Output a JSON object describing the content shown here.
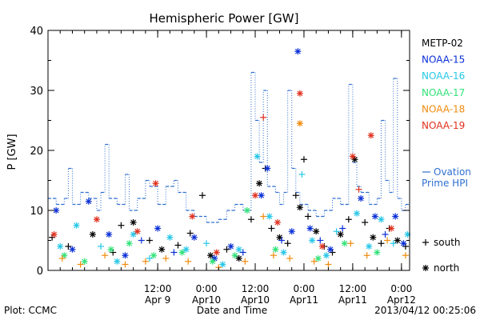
{
  "chart_data": {
    "type": "scatter",
    "title": "Hemispheric Power [GW]",
    "xlabel": "Date and Time",
    "ylabel": "P [GW]",
    "ylim": [
      0,
      40
    ],
    "yticks": [
      0,
      10,
      20,
      30,
      40
    ],
    "xlim": [
      "2013-04-08T09:00",
      "2013-04-12T02:00"
    ],
    "xticks": [
      {
        "t": "2013-04-09T12:00",
        "line1": "12:00",
        "line2": "Apr 9"
      },
      {
        "t": "2013-04-10T00:00",
        "line1": "0:00",
        "line2": "Apr10"
      },
      {
        "t": "2013-04-10T12:00",
        "line1": "12:00",
        "line2": "Apr10"
      },
      {
        "t": "2013-04-11T00:00",
        "line1": "0:00",
        "line2": "Apr11"
      },
      {
        "t": "2013-04-11T12:00",
        "line1": "12:00",
        "line2": "Apr11"
      },
      {
        "t": "2013-04-12T00:00",
        "line1": "0:00",
        "line2": "Apr12"
      }
    ],
    "grid": false,
    "legend_position": "right",
    "series": [
      {
        "name": "METP-02",
        "color": "#000000",
        "points": [
          [
            "2013-04-08T10:00",
            5.5,
            "+"
          ],
          [
            "2013-04-08T14:00",
            4.0,
            "+"
          ],
          [
            "2013-04-08T20:00",
            6.0,
            "*"
          ],
          [
            "2013-04-09T01:00",
            3.0,
            "+"
          ],
          [
            "2013-04-09T03:00",
            7.5,
            "+"
          ],
          [
            "2013-04-09T06:00",
            8.0,
            "*"
          ],
          [
            "2013-04-09T10:00",
            5.0,
            "+"
          ],
          [
            "2013-04-09T13:00",
            3.5,
            "*"
          ],
          [
            "2013-04-09T17:00",
            4.2,
            "+"
          ],
          [
            "2013-04-09T20:00",
            6.2,
            "+"
          ],
          [
            "2013-04-09T23:00",
            12.5,
            "+"
          ],
          [
            "2013-04-10T01:00",
            2.5,
            "*"
          ],
          [
            "2013-04-10T05:00",
            3.5,
            "+"
          ],
          [
            "2013-04-10T08:00",
            2.0,
            "*"
          ],
          [
            "2013-04-10T11:00",
            8.5,
            "+"
          ],
          [
            "2013-04-10T13:00",
            14.5,
            "*"
          ],
          [
            "2013-04-10T14:30",
            17.0,
            "+"
          ],
          [
            "2013-04-10T16:00",
            7.0,
            "+"
          ],
          [
            "2013-04-10T18:00",
            5.5,
            "*"
          ],
          [
            "2013-04-10T20:00",
            4.5,
            "+"
          ],
          [
            "2013-04-10T22:00",
            12.5,
            "+"
          ],
          [
            "2013-04-10T23:00",
            10.5,
            "*"
          ],
          [
            "2013-04-11T00:00",
            18.5,
            "+"
          ],
          [
            "2013-04-11T01:00",
            9.0,
            "+"
          ],
          [
            "2013-04-11T03:00",
            6.5,
            "*"
          ],
          [
            "2013-04-11T05:00",
            4.0,
            "+"
          ],
          [
            "2013-04-11T07:00",
            3.0,
            "+"
          ],
          [
            "2013-04-11T09:00",
            6.0,
            "*"
          ],
          [
            "2013-04-11T11:00",
            8.5,
            "+"
          ],
          [
            "2013-04-11T12:30",
            18.5,
            "*"
          ],
          [
            "2013-04-11T15:00",
            8.0,
            "+"
          ],
          [
            "2013-04-11T17:00",
            5.5,
            "*"
          ],
          [
            "2013-04-11T19:00",
            4.5,
            "+"
          ],
          [
            "2013-04-11T21:00",
            7.0,
            "+"
          ],
          [
            "2013-04-11T23:00",
            5.0,
            "*"
          ],
          [
            "2013-04-12T01:00",
            4.0,
            "+"
          ]
        ]
      },
      {
        "name": "NOAA-15",
        "color": "#0a2fd6",
        "points": [
          [
            "2013-04-08T11:00",
            10.0,
            "*"
          ],
          [
            "2013-04-08T15:00",
            3.5,
            "*"
          ],
          [
            "2013-04-08T19:00",
            11.5,
            "*"
          ],
          [
            "2013-04-09T00:00",
            6.0,
            "*"
          ],
          [
            "2013-04-09T04:00",
            2.5,
            "*"
          ],
          [
            "2013-04-09T08:00",
            5.0,
            "+"
          ],
          [
            "2013-04-09T12:00",
            7.0,
            "*"
          ],
          [
            "2013-04-09T16:00",
            3.0,
            "+"
          ],
          [
            "2013-04-09T21:00",
            5.5,
            "*"
          ],
          [
            "2013-04-10T02:00",
            2.0,
            "*"
          ],
          [
            "2013-04-10T06:00",
            4.0,
            "*"
          ],
          [
            "2013-04-10T09:00",
            3.0,
            "+"
          ],
          [
            "2013-04-10T13:30",
            12.5,
            "*"
          ],
          [
            "2013-04-10T15:00",
            17.0,
            "*"
          ],
          [
            "2013-04-10T18:30",
            5.0,
            "+"
          ],
          [
            "2013-04-10T21:00",
            6.5,
            "*"
          ],
          [
            "2013-04-10T22:30",
            36.5,
            "*"
          ],
          [
            "2013-04-11T01:30",
            7.0,
            "*"
          ],
          [
            "2013-04-11T04:00",
            5.0,
            "+"
          ],
          [
            "2013-04-11T06:30",
            3.5,
            "*"
          ],
          [
            "2013-04-11T09:30",
            7.0,
            "+"
          ],
          [
            "2013-04-11T14:00",
            12.0,
            "*"
          ],
          [
            "2013-04-11T17:30",
            9.0,
            "*"
          ],
          [
            "2013-04-11T20:00",
            6.0,
            "+"
          ],
          [
            "2013-04-11T22:30",
            9.0,
            "*"
          ],
          [
            "2013-04-12T00:30",
            4.5,
            "*"
          ]
        ]
      },
      {
        "name": "NOAA-16",
        "color": "#27c7e8",
        "points": [
          [
            "2013-04-08T12:00",
            4.0,
            "*"
          ],
          [
            "2013-04-08T16:00",
            7.5,
            "*"
          ],
          [
            "2013-04-08T22:00",
            4.0,
            "+"
          ],
          [
            "2013-04-09T02:00",
            1.5,
            "*"
          ],
          [
            "2013-04-09T06:00",
            6.0,
            "*"
          ],
          [
            "2013-04-09T10:00",
            2.0,
            "+"
          ],
          [
            "2013-04-09T15:00",
            5.5,
            "*"
          ],
          [
            "2013-04-09T19:00",
            3.5,
            "*"
          ],
          [
            "2013-04-10T00:00",
            4.5,
            "+"
          ],
          [
            "2013-04-10T04:00",
            1.0,
            "*"
          ],
          [
            "2013-04-10T08:00",
            3.5,
            "*"
          ],
          [
            "2013-04-10T12:30",
            19.0,
            "*"
          ],
          [
            "2013-04-10T15:30",
            9.0,
            "*"
          ],
          [
            "2013-04-10T19:00",
            3.0,
            "*"
          ],
          [
            "2013-04-10T23:30",
            16.0,
            "+"
          ],
          [
            "2013-04-11T02:00",
            5.0,
            "*"
          ],
          [
            "2013-04-11T05:30",
            2.5,
            "*"
          ],
          [
            "2013-04-11T08:00",
            6.5,
            "+"
          ],
          [
            "2013-04-11T13:00",
            9.5,
            "*"
          ],
          [
            "2013-04-11T16:00",
            4.0,
            "*"
          ],
          [
            "2013-04-11T19:00",
            8.5,
            "*"
          ],
          [
            "2013-04-11T22:00",
            4.5,
            "+"
          ],
          [
            "2013-04-12T01:30",
            6.0,
            "*"
          ]
        ]
      },
      {
        "name": "NOAA-17",
        "color": "#33e27a",
        "points": [
          [
            "2013-04-08T13:00",
            2.5,
            "*"
          ],
          [
            "2013-04-08T18:00",
            1.5,
            "*"
          ],
          [
            "2013-04-09T00:30",
            3.5,
            "*"
          ],
          [
            "2013-04-09T05:00",
            4.5,
            "*"
          ],
          [
            "2013-04-09T11:00",
            2.5,
            "*"
          ],
          [
            "2013-04-09T18:00",
            3.0,
            "*"
          ],
          [
            "2013-04-10T01:30",
            1.5,
            "*"
          ],
          [
            "2013-04-10T07:00",
            2.5,
            "*"
          ],
          [
            "2013-04-10T10:00",
            10.0,
            "*"
          ],
          [
            "2013-04-10T17:00",
            3.5,
            "*"
          ],
          [
            "2013-04-11T03:30",
            2.0,
            "*"
          ],
          [
            "2013-04-11T10:00",
            4.5,
            "*"
          ],
          [
            "2013-04-11T18:00",
            3.0,
            "*"
          ]
        ]
      },
      {
        "name": "NOAA-18",
        "color": "#f08c0e",
        "points": [
          [
            "2013-04-08T12:30",
            2.0,
            "+"
          ],
          [
            "2013-04-08T17:00",
            1.0,
            "+"
          ],
          [
            "2013-04-08T23:00",
            2.5,
            "+"
          ],
          [
            "2013-04-09T04:00",
            1.0,
            "+"
          ],
          [
            "2013-04-09T09:00",
            1.5,
            "+"
          ],
          [
            "2013-04-09T14:00",
            2.0,
            "+"
          ],
          [
            "2013-04-09T19:30",
            1.5,
            "+"
          ],
          [
            "2013-04-10T03:00",
            0.5,
            "+"
          ],
          [
            "2013-04-10T09:30",
            1.5,
            "+"
          ],
          [
            "2013-04-10T14:00",
            9.0,
            "+"
          ],
          [
            "2013-04-10T16:30",
            2.5,
            "+"
          ],
          [
            "2013-04-10T20:30",
            2.0,
            "+"
          ],
          [
            "2013-04-10T23:00",
            24.5,
            "*"
          ],
          [
            "2013-04-11T02:30",
            1.5,
            "+"
          ],
          [
            "2013-04-11T06:00",
            1.0,
            "+"
          ],
          [
            "2013-04-11T11:30",
            4.5,
            "+"
          ],
          [
            "2013-04-11T15:30",
            2.5,
            "+"
          ],
          [
            "2013-04-11T20:30",
            5.0,
            "+"
          ],
          [
            "2013-04-12T01:00",
            2.5,
            "+"
          ]
        ]
      },
      {
        "name": "NOAA-19",
        "color": "#e0301e",
        "points": [
          [
            "2013-04-08T10:30",
            6.0,
            "*"
          ],
          [
            "2013-04-08T21:00",
            8.5,
            "*"
          ],
          [
            "2013-04-09T07:00",
            6.5,
            "*"
          ],
          [
            "2013-04-09T11:30",
            14.5,
            "*"
          ],
          [
            "2013-04-09T20:30",
            9.0,
            "*"
          ],
          [
            "2013-04-10T02:30",
            3.0,
            "*"
          ],
          [
            "2013-04-10T12:00",
            12.5,
            "*"
          ],
          [
            "2013-04-10T14:00",
            25.5,
            "+"
          ],
          [
            "2013-04-10T17:30",
            8.0,
            "*"
          ],
          [
            "2013-04-10T23:00",
            29.5,
            "*"
          ],
          [
            "2013-04-11T04:30",
            4.0,
            "*"
          ],
          [
            "2013-04-11T12:00",
            19.0,
            "*"
          ],
          [
            "2013-04-11T13:30",
            13.5,
            "+"
          ],
          [
            "2013-04-11T16:30",
            22.5,
            "*"
          ],
          [
            "2013-04-11T21:30",
            7.0,
            "*"
          ]
        ]
      }
    ],
    "ovation": {
      "name": "Ovation Prime HPI",
      "color": "#2e6fd0",
      "step": [
        [
          "2013-04-08T09:00",
          12
        ],
        [
          "2013-04-08T11:00",
          11
        ],
        [
          "2013-04-08T13:00",
          12
        ],
        [
          "2013-04-08T14:00",
          17
        ],
        [
          "2013-04-08T15:00",
          11
        ],
        [
          "2013-04-08T17:00",
          13
        ],
        [
          "2013-04-08T19:00",
          12
        ],
        [
          "2013-04-08T21:00",
          10
        ],
        [
          "2013-04-08T22:00",
          13
        ],
        [
          "2013-04-08T23:00",
          21
        ],
        [
          "2013-04-09T00:00",
          12
        ],
        [
          "2013-04-09T02:00",
          11
        ],
        [
          "2013-04-09T04:00",
          16
        ],
        [
          "2013-04-09T05:00",
          10
        ],
        [
          "2013-04-09T07:00",
          12
        ],
        [
          "2013-04-09T09:00",
          15
        ],
        [
          "2013-04-09T10:00",
          14
        ],
        [
          "2013-04-09T12:00",
          11
        ],
        [
          "2013-04-09T14:00",
          14
        ],
        [
          "2013-04-09T16:00",
          15
        ],
        [
          "2013-04-09T17:00",
          13
        ],
        [
          "2013-04-09T19:00",
          10
        ],
        [
          "2013-04-09T21:00",
          9
        ],
        [
          "2013-04-10T00:00",
          8
        ],
        [
          "2013-04-10T03:00",
          8.5
        ],
        [
          "2013-04-10T05:00",
          10
        ],
        [
          "2013-04-10T07:00",
          11
        ],
        [
          "2013-04-10T09:00",
          10
        ],
        [
          "2013-04-10T11:00",
          33
        ],
        [
          "2013-04-10T12:00",
          25
        ],
        [
          "2013-04-10T13:00",
          18
        ],
        [
          "2013-04-10T14:00",
          30
        ],
        [
          "2013-04-10T15:00",
          14
        ],
        [
          "2013-04-10T17:00",
          13
        ],
        [
          "2013-04-10T18:00",
          11
        ],
        [
          "2013-04-10T19:00",
          13
        ],
        [
          "2013-04-10T20:00",
          30
        ],
        [
          "2013-04-10T21:00",
          17
        ],
        [
          "2013-04-10T22:00",
          13
        ],
        [
          "2013-04-10T23:00",
          11
        ],
        [
          "2013-04-11T01:00",
          10
        ],
        [
          "2013-04-11T03:00",
          9
        ],
        [
          "2013-04-11T05:00",
          10
        ],
        [
          "2013-04-11T07:00",
          12
        ],
        [
          "2013-04-11T09:00",
          11
        ],
        [
          "2013-04-11T11:00",
          31
        ],
        [
          "2013-04-11T12:00",
          18
        ],
        [
          "2013-04-11T13:00",
          14
        ],
        [
          "2013-04-11T14:00",
          13
        ],
        [
          "2013-04-11T16:00",
          11
        ],
        [
          "2013-04-11T18:00",
          12
        ],
        [
          "2013-04-11T19:00",
          25
        ],
        [
          "2013-04-11T20:00",
          15
        ],
        [
          "2013-04-11T21:00",
          13
        ],
        [
          "2013-04-11T22:00",
          32
        ],
        [
          "2013-04-11T23:00",
          12
        ],
        [
          "2013-04-12T00:00",
          10
        ],
        [
          "2013-04-12T01:00",
          11
        ],
        [
          "2013-04-12T02:00",
          11
        ]
      ]
    },
    "marker_legend": [
      {
        "symbol": "+",
        "label": "south"
      },
      {
        "symbol": "*",
        "label": "north"
      }
    ]
  },
  "footer": {
    "plot_credit": "Plot: CCMC",
    "timestamp": "2013/04/12 00:25:06"
  }
}
